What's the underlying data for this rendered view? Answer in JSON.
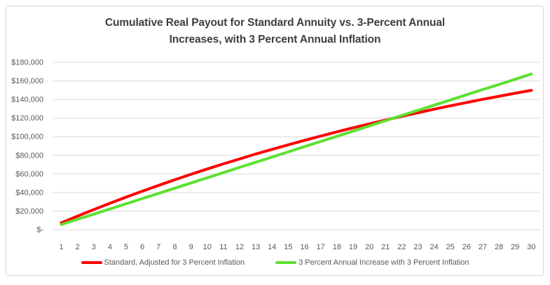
{
  "chart": {
    "title_line1": "Cumulative Real Payout for Standard Annuity vs. 3-Percent Annual",
    "title_line2": "Increases, with 3 Percent Annual Inflation",
    "colors": {
      "standard_line": "#fe0000",
      "increase_line": "#5ce130",
      "gridline": "#d9d9d9",
      "axis_line": "#d9d9d9",
      "axis_text": "#595959",
      "title_text": "#3e3e3e",
      "frame_border": "#d4d4d4"
    }
  },
  "chart_data": {
    "type": "line",
    "title": "Cumulative Real Payout for Standard Annuity vs. 3-Percent Annual Increases, with 3 Percent Annual Inflation",
    "xlabel": "",
    "ylabel": "",
    "x": [
      1,
      2,
      3,
      4,
      5,
      6,
      7,
      8,
      9,
      10,
      11,
      12,
      13,
      14,
      15,
      16,
      17,
      18,
      19,
      20,
      21,
      22,
      23,
      24,
      25,
      26,
      27,
      28,
      29,
      30
    ],
    "ylim": [
      0,
      180000
    ],
    "ytick_step": 20000,
    "ytick_labels": [
      "$-",
      "$20,000",
      "$40,000",
      "$60,000",
      "$80,000",
      "$100,000",
      "$120,000",
      "$140,000",
      "$160,000",
      "$180,000"
    ],
    "grid": true,
    "legend_position": "bottom",
    "series": [
      {
        "name": "Standard, Adjusted for 3 Percent Inflation",
        "color": "#fe0000",
        "values": [
          7400,
          14600,
          21600,
          28400,
          35000,
          41400,
          47700,
          53700,
          59600,
          65300,
          70800,
          76100,
          81400,
          86400,
          91300,
          96100,
          100700,
          105200,
          109600,
          113800,
          117900,
          121900,
          125800,
          129600,
          133200,
          136800,
          140200,
          143500,
          146800,
          149900
        ]
      },
      {
        "name": "3 Percent Annual Increase with 3 Percent Inflation",
        "color": "#5ce130",
        "values": [
          5600,
          11200,
          16700,
          22300,
          27900,
          33500,
          39100,
          44600,
          50200,
          55800,
          61400,
          67000,
          72500,
          78100,
          83700,
          89300,
          94900,
          100400,
          106000,
          111600,
          117200,
          122800,
          128300,
          133900,
          139500,
          145100,
          150700,
          156200,
          161800,
          167400
        ]
      }
    ]
  }
}
